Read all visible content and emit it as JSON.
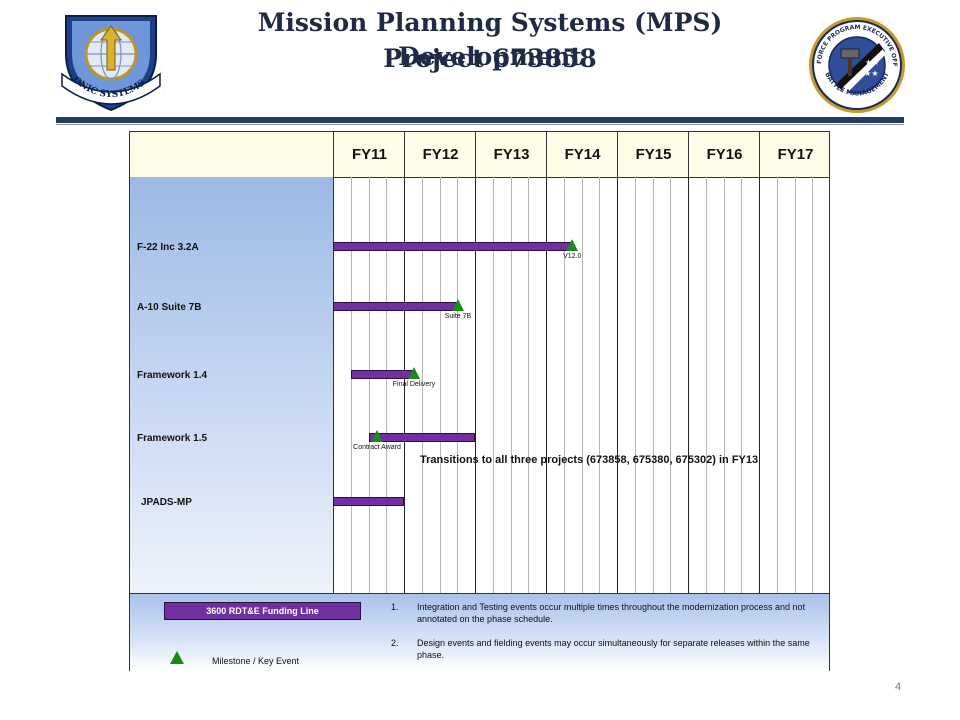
{
  "header": {
    "title_line1": "Mission Planning Systems (MPS) Development",
    "title_line2": "Project 673858",
    "left_logo_text": "ELECTRONIC SYSTEMS CENTER",
    "right_logo_text_top": "AIR FORCE PROGRAM EXECUTIVE OFFICE",
    "right_logo_text_bottom": "BATTLE MANAGEMENT"
  },
  "schedule": {
    "fiscal_years": [
      "FY11",
      "FY12",
      "FY13",
      "FY14",
      "FY15",
      "FY16",
      "FY17"
    ],
    "rows": [
      {
        "label": "F-22 Inc 3.2A"
      },
      {
        "label": "A-10 Suite 7B"
      },
      {
        "label": "Framework 1.4"
      },
      {
        "label": "Framework 1.5"
      },
      {
        "label": "JPADS-MP"
      }
    ],
    "bars": [
      {
        "row": 0,
        "start": 0.0,
        "end": 3.37
      },
      {
        "row": 1,
        "start": 0.0,
        "end": 1.76
      },
      {
        "row": 2,
        "start": 0.25,
        "end": 1.14
      },
      {
        "row": 3,
        "start": 0.5,
        "end": 2.0
      },
      {
        "row": 4,
        "start": 0.0,
        "end": 1.0
      }
    ],
    "milestones": [
      {
        "row": 0,
        "at": 3.37,
        "label": "V12.0"
      },
      {
        "row": 1,
        "at": 1.76,
        "label": "Suite 7B"
      },
      {
        "row": 2,
        "at": 1.14,
        "label": "Final Delivery"
      },
      {
        "row": 3,
        "at": 0.62,
        "label": "Contract Award"
      }
    ],
    "transition_note": "Transitions to all three projects (673858,  675380,  675302)  in FY13"
  },
  "legend": {
    "funding_line_label": "3600 RDT&E Funding Line",
    "milestone_label": "Milestone / Key Event",
    "notes": [
      {
        "num": "1.",
        "text": "Integration and Testing events occur multiple times throughout the modernization process and not annotated on the phase schedule."
      },
      {
        "num": "2.",
        "text": "Design events and fielding events may occur simultaneously for separate releases within the same phase."
      }
    ]
  },
  "page_number": "4",
  "colors": {
    "bar": "#7030a0",
    "milestone": "#1a8a1a",
    "title": "#1f2a44",
    "rule": "#243a5e"
  }
}
